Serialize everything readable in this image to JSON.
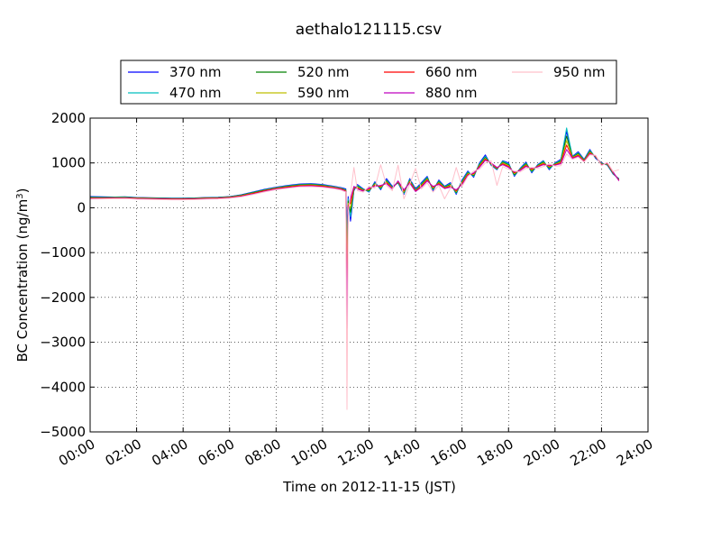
{
  "chart_data": {
    "type": "line",
    "title": "aethalo121115.csv",
    "xlabel": "Time on 2012-11-15 (JST)",
    "ylabel": "BC Concentration (ng/m",
    "ylabel_superscript": "3",
    "ylabel_close": ")",
    "x_unit": "hour of day",
    "xlim": [
      0,
      24
    ],
    "ylim": [
      -5000,
      2000
    ],
    "grid": true,
    "legend_position": "top",
    "x_ticks": [
      {
        "value": 0,
        "label": "00:00"
      },
      {
        "value": 2,
        "label": "02:00"
      },
      {
        "value": 4,
        "label": "04:00"
      },
      {
        "value": 6,
        "label": "06:00"
      },
      {
        "value": 8,
        "label": "08:00"
      },
      {
        "value": 10,
        "label": "10:00"
      },
      {
        "value": 12,
        "label": "12:00"
      },
      {
        "value": 14,
        "label": "14:00"
      },
      {
        "value": 16,
        "label": "16:00"
      },
      {
        "value": 18,
        "label": "18:00"
      },
      {
        "value": 20,
        "label": "20:00"
      },
      {
        "value": 22,
        "label": "22:00"
      },
      {
        "value": 24,
        "label": "24:00"
      }
    ],
    "y_ticks": [
      {
        "value": 2000,
        "label": "2000"
      },
      {
        "value": 1000,
        "label": "1000"
      },
      {
        "value": 0,
        "label": "0"
      },
      {
        "value": -1000,
        "label": "−1000"
      },
      {
        "value": -2000,
        "label": "−2000"
      },
      {
        "value": -3000,
        "label": "−3000"
      },
      {
        "value": -4000,
        "label": "−4000"
      },
      {
        "value": -5000,
        "label": "−5000"
      }
    ],
    "x": [
      0.0,
      0.5,
      1.0,
      1.5,
      2.0,
      2.5,
      3.0,
      3.5,
      4.0,
      4.5,
      5.0,
      5.5,
      6.0,
      6.5,
      7.0,
      7.5,
      8.0,
      8.5,
      9.0,
      9.5,
      10.0,
      10.5,
      10.8,
      11.0,
      11.05,
      11.1,
      11.2,
      11.35,
      11.5,
      11.75,
      12.0,
      12.25,
      12.5,
      12.75,
      13.0,
      13.25,
      13.5,
      13.75,
      14.0,
      14.25,
      14.5,
      14.75,
      15.0,
      15.25,
      15.5,
      15.75,
      16.0,
      16.25,
      16.5,
      16.75,
      17.0,
      17.25,
      17.5,
      17.75,
      18.0,
      18.25,
      18.5,
      18.75,
      19.0,
      19.25,
      19.5,
      19.75,
      20.0,
      20.25,
      20.5,
      20.75,
      21.0,
      21.25,
      21.5,
      21.75,
      22.0,
      22.25,
      22.5,
      22.75
    ],
    "series": [
      {
        "name": "370 nm",
        "color": "#0000ff",
        "values": [
          250,
          245,
          240,
          245,
          230,
          225,
          220,
          215,
          215,
          220,
          230,
          235,
          250,
          290,
          350,
          410,
          460,
          500,
          530,
          540,
          520,
          480,
          450,
          420,
          -500,
          250,
          -300,
          380,
          520,
          420,
          350,
          580,
          400,
          650,
          480,
          550,
          300,
          650,
          420,
          560,
          700,
          380,
          620,
          480,
          560,
          300,
          620,
          820,
          680,
          1000,
          1180,
          950,
          850,
          1050,
          1000,
          700,
          880,
          1020,
          780,
          960,
          1050,
          850,
          1000,
          1080,
          1700,
          1150,
          1250,
          1080,
          1300,
          1100,
          1000,
          950,
          750,
          650
        ]
      },
      {
        "name": "470 nm",
        "color": "#00bfbf",
        "values": [
          240,
          235,
          235,
          240,
          225,
          220,
          215,
          210,
          210,
          215,
          225,
          230,
          245,
          285,
          345,
          400,
          450,
          490,
          520,
          530,
          510,
          470,
          440,
          400,
          -800,
          200,
          -200,
          400,
          500,
          410,
          360,
          560,
          420,
          620,
          460,
          560,
          320,
          630,
          400,
          540,
          680,
          400,
          600,
          470,
          540,
          320,
          600,
          800,
          700,
          980,
          1150,
          960,
          860,
          1040,
          980,
          720,
          870,
          1000,
          800,
          950,
          1040,
          870,
          990,
          1060,
          1780,
          1140,
          1230,
          1070,
          1280,
          1120,
          990,
          960,
          760,
          640
        ]
      },
      {
        "name": "520 nm",
        "color": "#008000",
        "values": [
          230,
          228,
          230,
          232,
          220,
          215,
          210,
          205,
          205,
          210,
          220,
          225,
          240,
          278,
          335,
          392,
          442,
          480,
          510,
          520,
          500,
          460,
          430,
          390,
          -1200,
          150,
          -100,
          420,
          480,
          400,
          380,
          540,
          440,
          600,
          450,
          570,
          340,
          610,
          390,
          520,
          660,
          420,
          580,
          460,
          520,
          340,
          580,
          780,
          720,
          960,
          1120,
          970,
          870,
          1020,
          960,
          740,
          860,
          980,
          820,
          940,
          1020,
          890,
          980,
          1040,
          1600,
          1130,
          1210,
          1060,
          1260,
          1130,
          980,
          970,
          770,
          630
        ]
      },
      {
        "name": "590 nm",
        "color": "#bfbf00",
        "values": [
          220,
          220,
          225,
          225,
          215,
          210,
          205,
          200,
          200,
          205,
          215,
          220,
          235,
          270,
          325,
          385,
          435,
          470,
          500,
          510,
          490,
          455,
          425,
          380,
          -1500,
          100,
          0,
          440,
          460,
          390,
          400,
          520,
          460,
          580,
          440,
          580,
          360,
          590,
          380,
          500,
          640,
          440,
          560,
          450,
          500,
          360,
          560,
          760,
          740,
          940,
          1100,
          980,
          880,
          1000,
          940,
          760,
          850,
          960,
          840,
          930,
          1000,
          910,
          970,
          1020,
          1500,
          1120,
          1190,
          1050,
          1240,
          1140,
          970,
          980,
          780,
          620
        ]
      },
      {
        "name": "660 nm",
        "color": "#ff0000",
        "values": [
          215,
          212,
          218,
          220,
          210,
          205,
          200,
          195,
          195,
          200,
          210,
          215,
          230,
          262,
          318,
          378,
          428,
          462,
          492,
          500,
          482,
          448,
          418,
          372,
          -2300,
          50,
          100,
          460,
          440,
          380,
          420,
          500,
          480,
          560,
          430,
          590,
          380,
          570,
          370,
          480,
          620,
          460,
          540,
          440,
          480,
          380,
          540,
          740,
          760,
          920,
          1080,
          990,
          890,
          980,
          920,
          780,
          840,
          940,
          860,
          920,
          980,
          930,
          960,
          1000,
          1400,
          1110,
          1170,
          1040,
          1220,
          1150,
          960,
          990,
          790,
          610
        ]
      },
      {
        "name": "880 nm",
        "color": "#bf00bf",
        "values": [
          205,
          205,
          210,
          212,
          200,
          195,
          190,
          185,
          185,
          190,
          200,
          205,
          220,
          252,
          305,
          365,
          415,
          448,
          478,
          485,
          468,
          435,
          405,
          360,
          -2800,
          0,
          200,
          480,
          420,
          370,
          440,
          480,
          500,
          540,
          420,
          600,
          400,
          550,
          360,
          460,
          600,
          480,
          520,
          430,
          460,
          400,
          520,
          720,
          780,
          900,
          1060,
          1000,
          900,
          960,
          900,
          800,
          830,
          920,
          880,
          910,
          960,
          950,
          950,
          980,
          1300,
          1100,
          1150,
          1030,
          1200,
          1160,
          950,
          1000,
          800,
          600
        ]
      },
      {
        "name": "950 nm",
        "color": "#ffc0cb",
        "values": [
          195,
          198,
          202,
          205,
          192,
          188,
          182,
          178,
          178,
          182,
          192,
          198,
          212,
          242,
          295,
          352,
          402,
          435,
          465,
          472,
          455,
          422,
          392,
          350,
          -4500,
          -100,
          300,
          900,
          380,
          350,
          480,
          440,
          960,
          500,
          380,
          950,
          200,
          520,
          880,
          420,
          560,
          350,
          500,
          200,
          440,
          900,
          480,
          700,
          820,
          860,
          1000,
          1050,
          500,
          920,
          860,
          820,
          800,
          880,
          900,
          880,
          920,
          980,
          930,
          940,
          1200,
          1080,
          1130,
          1020,
          1180,
          1170,
          940,
          1010,
          810,
          850
        ]
      }
    ]
  }
}
